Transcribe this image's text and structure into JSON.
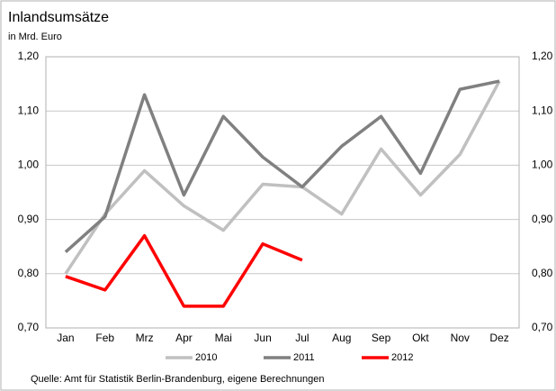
{
  "chart_data": {
    "type": "line",
    "title": "Inlandsumsätze",
    "subtitle": "in Mrd. Euro",
    "source": "Quelle: Amt für Statistik Berlin-Brandenburg,  eigene Berechnungen",
    "categories": [
      "Jan",
      "Feb",
      "Mrz",
      "Apr",
      "Mai",
      "Jun",
      "Jul",
      "Aug",
      "Sep",
      "Okt",
      "Nov",
      "Dez"
    ],
    "series": [
      {
        "name": "2010",
        "color": "#c0c0c0",
        "values": [
          0.8,
          0.91,
          0.99,
          0.925,
          0.88,
          0.965,
          0.96,
          0.91,
          1.03,
          0.945,
          1.02,
          1.155
        ]
      },
      {
        "name": "2011",
        "color": "#808080",
        "values": [
          0.84,
          0.905,
          1.13,
          0.945,
          1.09,
          1.015,
          0.96,
          1.035,
          1.09,
          0.985,
          1.14,
          1.155
        ]
      },
      {
        "name": "2012",
        "color": "#ff0000",
        "values": [
          0.795,
          0.77,
          0.87,
          0.74,
          0.74,
          0.855,
          0.825,
          null,
          null,
          null,
          null,
          null
        ]
      }
    ],
    "ylim": [
      0.7,
      1.2
    ],
    "yticks": [
      {
        "value": 0.7,
        "label": "0,70"
      },
      {
        "value": 0.8,
        "label": "0,80"
      },
      {
        "value": 0.9,
        "label": "0,90"
      },
      {
        "value": 1.0,
        "label": "1,00"
      },
      {
        "value": 1.1,
        "label": "1,10"
      },
      {
        "value": 1.2,
        "label": "1,20"
      }
    ],
    "grid": true,
    "legend": "bottom"
  }
}
